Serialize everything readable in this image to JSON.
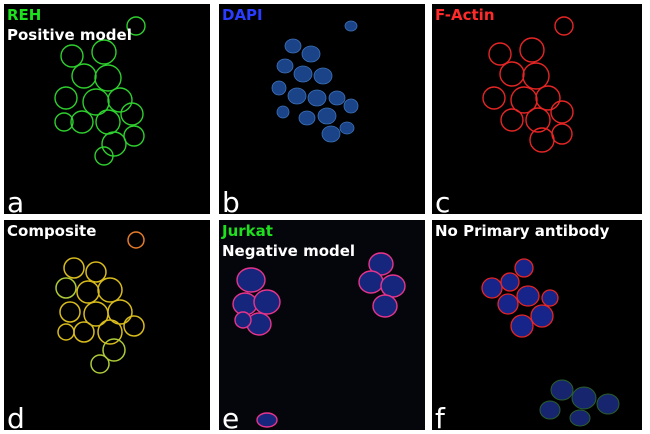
{
  "panels": [
    {
      "id": "a",
      "letter": "a",
      "title": "REH",
      "subtitle": "Positive model"
    },
    {
      "id": "b",
      "letter": "b",
      "title": "DAPI",
      "subtitle": ""
    },
    {
      "id": "c",
      "letter": "c",
      "title": "F-Actin",
      "subtitle": ""
    },
    {
      "id": "d",
      "letter": "d",
      "title": "Composite",
      "subtitle": ""
    },
    {
      "id": "e",
      "letter": "e",
      "title": "Jurkat",
      "subtitle": "Negative model"
    },
    {
      "id": "f",
      "letter": "f",
      "title": "No Primary antibody",
      "subtitle": ""
    }
  ],
  "colors": {
    "green": "#1ee01e",
    "blue": "#2a3cff",
    "red": "#ff2a2a",
    "white": "#ffffff",
    "background": "#000000"
  }
}
